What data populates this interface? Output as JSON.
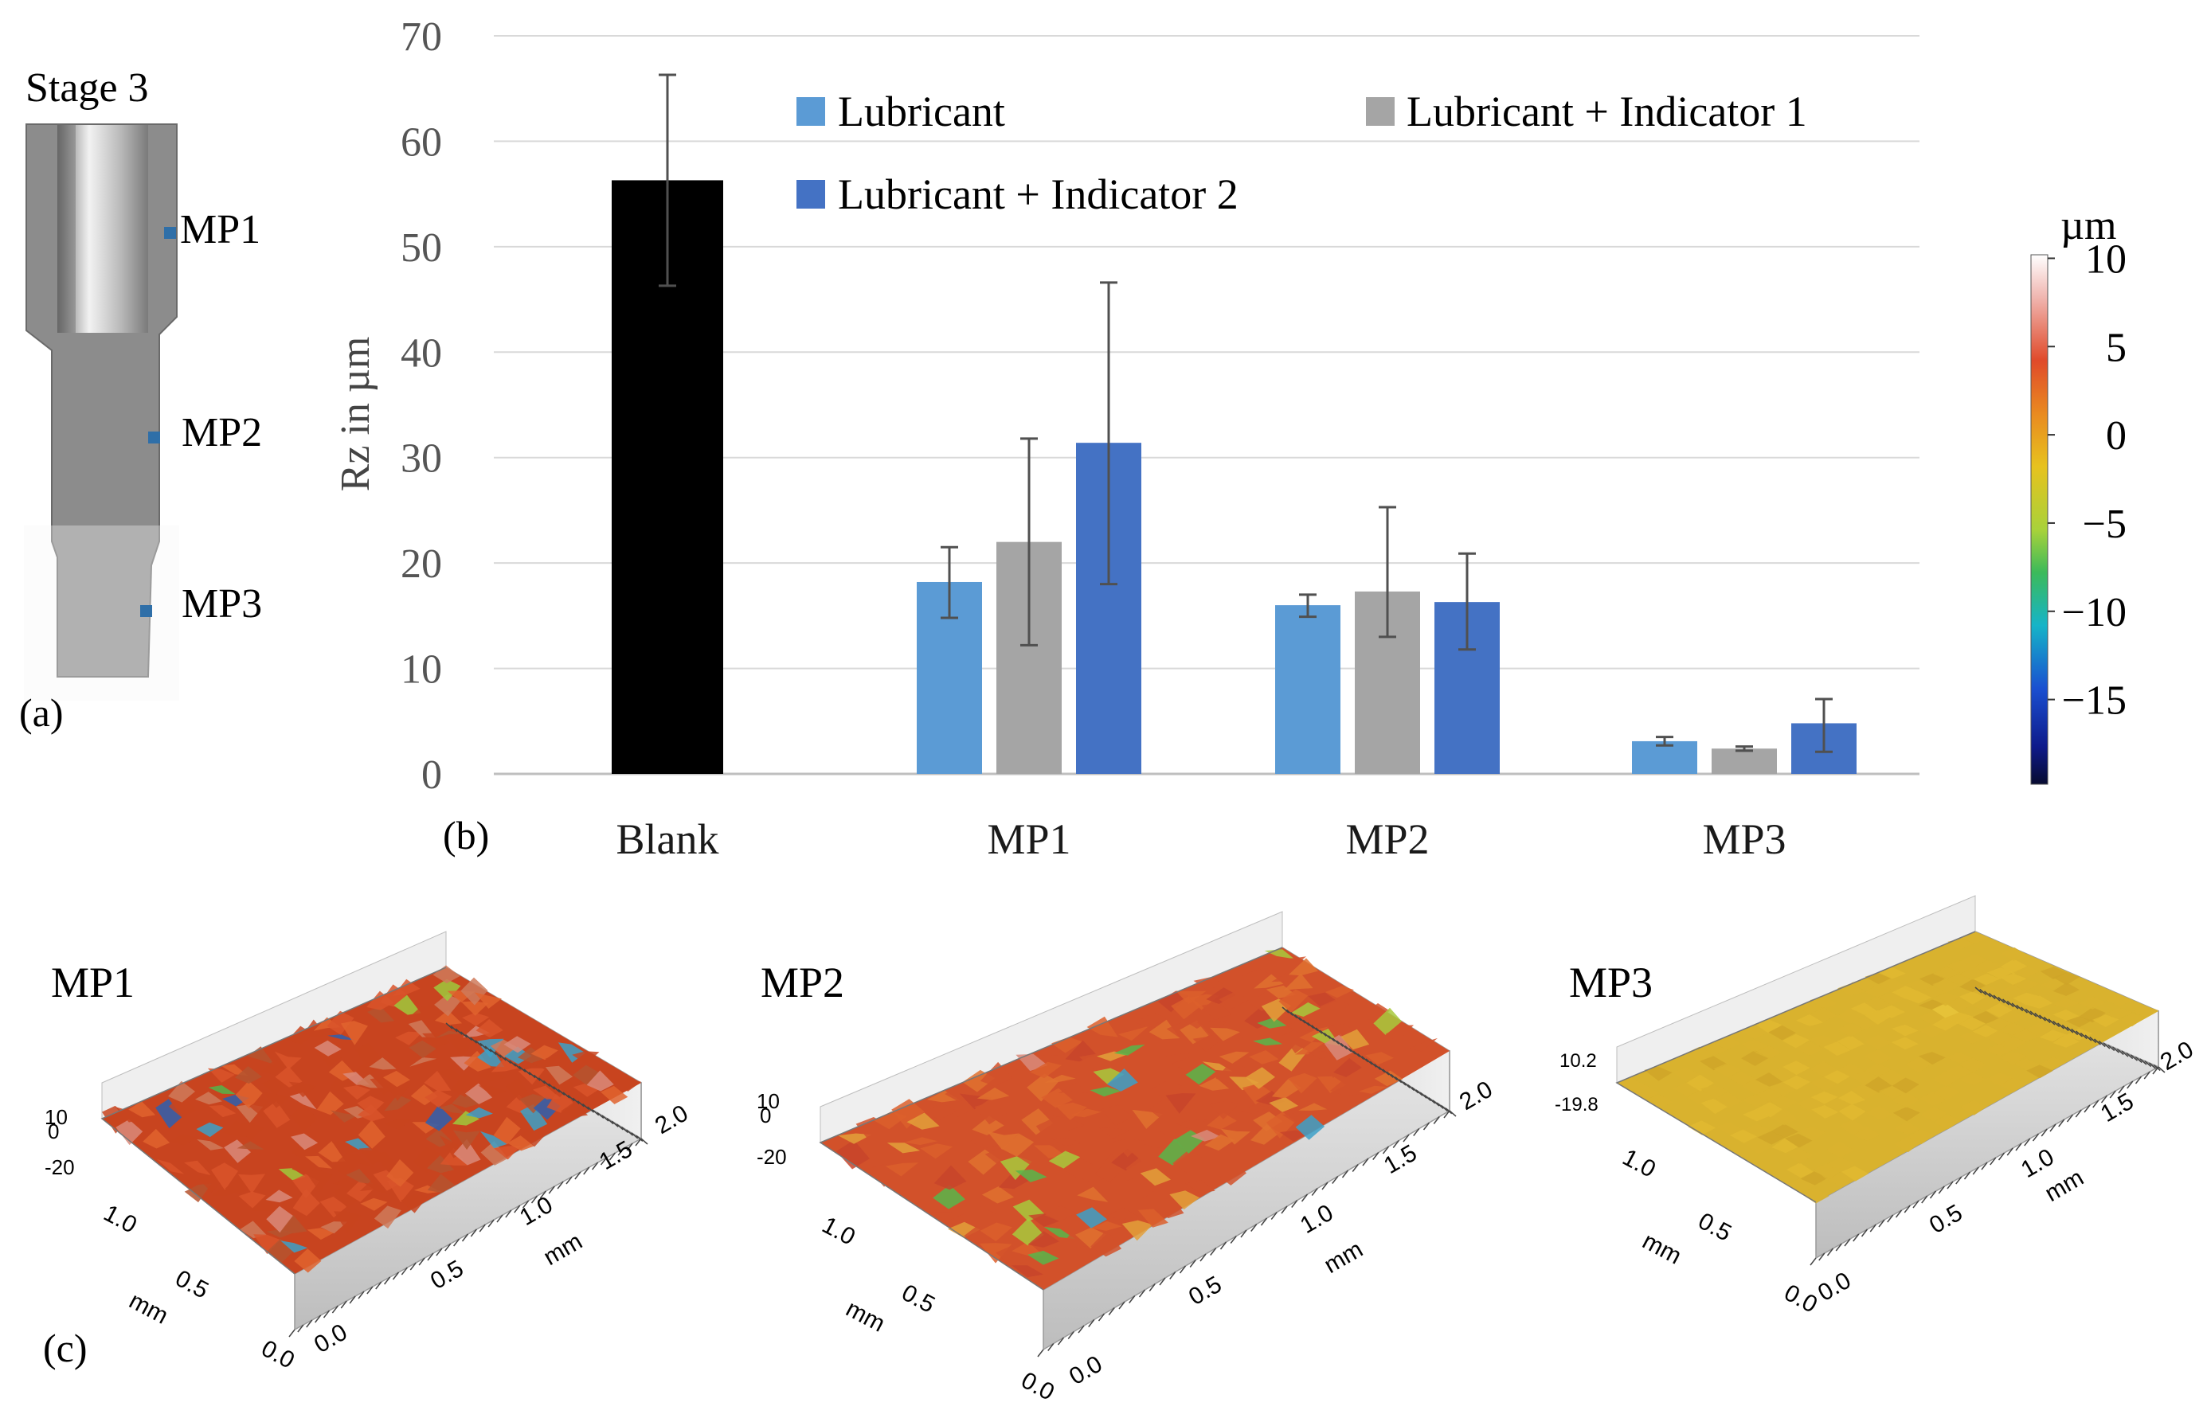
{
  "panel_a": {
    "title": "Stage 3",
    "label": "(a)",
    "points": [
      "MP1",
      "MP2",
      "MP3"
    ]
  },
  "panel_b": {
    "label": "(b)"
  },
  "panel_c": {
    "label": "(c)"
  },
  "colorbar": {
    "unit": "µm",
    "ticks": [
      "10",
      "5",
      "0",
      "−5",
      "−10",
      "−15"
    ],
    "tick_values": [
      10,
      5,
      0,
      -5,
      -10,
      -15
    ],
    "range": [
      -19.8,
      10.2
    ]
  },
  "surfaces": [
    {
      "title": "MP1",
      "z_top": "10",
      "z_top2": "0",
      "z_bottom": "-20",
      "left_ticks": [
        "1.0",
        "0.5",
        "0.0"
      ],
      "right_ticks": [
        "0.0",
        "0.5",
        "1.0",
        "1.5",
        "2.0"
      ],
      "axis_unit_left": "mm",
      "axis_unit_right": "mm",
      "palette": [
        "#c8441f",
        "#d9532a",
        "#e0632e",
        "#b5532f",
        "#cf7a5a",
        "#d98a7a",
        "#3ca0c8",
        "#2d5fb0",
        "#53b44a",
        "#9fc93c",
        "#e6c02c"
      ]
    },
    {
      "title": "MP2",
      "z_top": "10",
      "z_top2": "0",
      "z_bottom": "-20",
      "left_ticks": [
        "1.0",
        "0.5",
        "0.0"
      ],
      "right_ticks": [
        "0.0",
        "0.5",
        "1.0",
        "1.5",
        "2.0"
      ],
      "axis_unit_left": "mm",
      "axis_unit_right": "mm",
      "palette": [
        "#d2512a",
        "#dc5f2c",
        "#e0712f",
        "#c8442a",
        "#e3a03a",
        "#a8c93c",
        "#58b64a",
        "#3ca0c8",
        "#d98a7a"
      ]
    },
    {
      "title": "MP3",
      "z_top": "10.2",
      "z_bottom": "-19.8",
      "left_ticks": [
        "1.0",
        "0.5",
        "0.0"
      ],
      "right_ticks": [
        "0.0",
        "0.5",
        "1.0",
        "1.5",
        "2.0"
      ],
      "axis_unit_left": "mm",
      "axis_unit_right": "mm",
      "palette": [
        "#d9b22e",
        "#e0b830",
        "#cfa428",
        "#e8c43a",
        "#c8962a",
        "#b8412a"
      ]
    }
  ],
  "chart_data": {
    "type": "bar",
    "title": "",
    "xlabel": "",
    "ylabel": "Rz in µm",
    "ylim": [
      0,
      70
    ],
    "yticks": [
      0,
      10,
      20,
      30,
      40,
      50,
      60,
      70
    ],
    "grid": true,
    "legend_position": "top",
    "categories": [
      "Blank",
      "MP1",
      "MP2",
      "MP3"
    ],
    "blank": {
      "name": "Blank",
      "color": "#000000",
      "value": 56.3,
      "error_low": 46.3,
      "error_high": 66.3
    },
    "series": [
      {
        "name": "Lubricant",
        "color": "#5b9bd5",
        "values": [
          null,
          18.2,
          16.0,
          3.1
        ],
        "error_low": [
          null,
          14.8,
          14.9,
          2.7
        ],
        "error_high": [
          null,
          21.5,
          17.0,
          3.5
        ]
      },
      {
        "name": "Lubricant + Indicator 1",
        "color": "#a5a5a5",
        "values": [
          null,
          22.0,
          17.3,
          2.4
        ],
        "error_low": [
          null,
          12.2,
          13.0,
          2.2
        ],
        "error_high": [
          null,
          31.8,
          25.3,
          2.6
        ]
      },
      {
        "name": "Lubricant + Indicator 2",
        "color": "#4472c4",
        "values": [
          null,
          31.4,
          16.3,
          4.8
        ],
        "error_low": [
          null,
          18.0,
          11.8,
          2.1
        ],
        "error_high": [
          null,
          46.6,
          20.9,
          7.1
        ]
      }
    ]
  }
}
